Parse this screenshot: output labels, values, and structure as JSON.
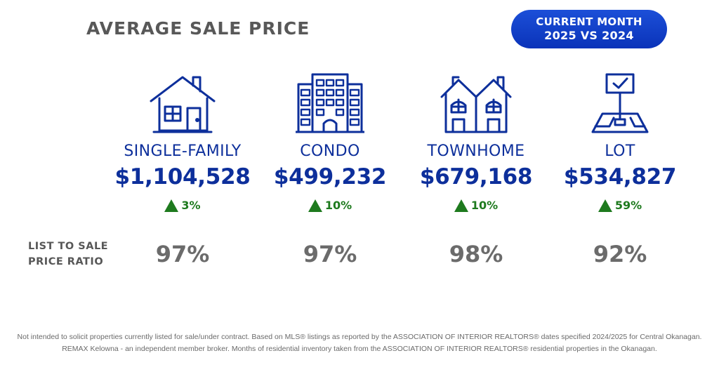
{
  "header": {
    "title": "AVERAGE SALE PRICE",
    "badge_line1": "CURRENT MONTH",
    "badge_line2": "2025 VS 2024",
    "badge_color": "#0a33b9"
  },
  "categories": [
    {
      "icon": "house-icon",
      "label": "SINGLE-FAMILY",
      "price": "$1,104,528",
      "change": "3%",
      "direction": "up",
      "ratio": "97%"
    },
    {
      "icon": "condo-building-icon",
      "label": "CONDO",
      "price": "$499,232",
      "change": "10%",
      "direction": "up",
      "ratio": "97%"
    },
    {
      "icon": "townhome-icon",
      "label": "TOWNHOME",
      "price": "$679,168",
      "change": "10%",
      "direction": "up",
      "ratio": "98%"
    },
    {
      "icon": "lot-sign-icon",
      "label": "LOT",
      "price": "$534,827",
      "change": "59%",
      "direction": "up",
      "ratio": "92%"
    }
  ],
  "ratio_label_line1": "LIST TO SALE",
  "ratio_label_line2": "PRICE RATIO",
  "colors": {
    "primary": "#0d2f9b",
    "positive": "#1e7a1e",
    "muted": "#6b6b6b"
  },
  "footer": {
    "line1": "Not intended to solicit properties currently listed for sale/under contract. Based on MLS® listings as reported by the ASSOCIATION OF INTERIOR REALTORS® dates specified 2024/2025 for Central Okanagan.",
    "line2": "REMAX Kelowna - an independent member broker. Months of residential inventory taken from the ASSOCIATION OF INTERIOR REALTORS® residential properties in the Okanagan."
  }
}
